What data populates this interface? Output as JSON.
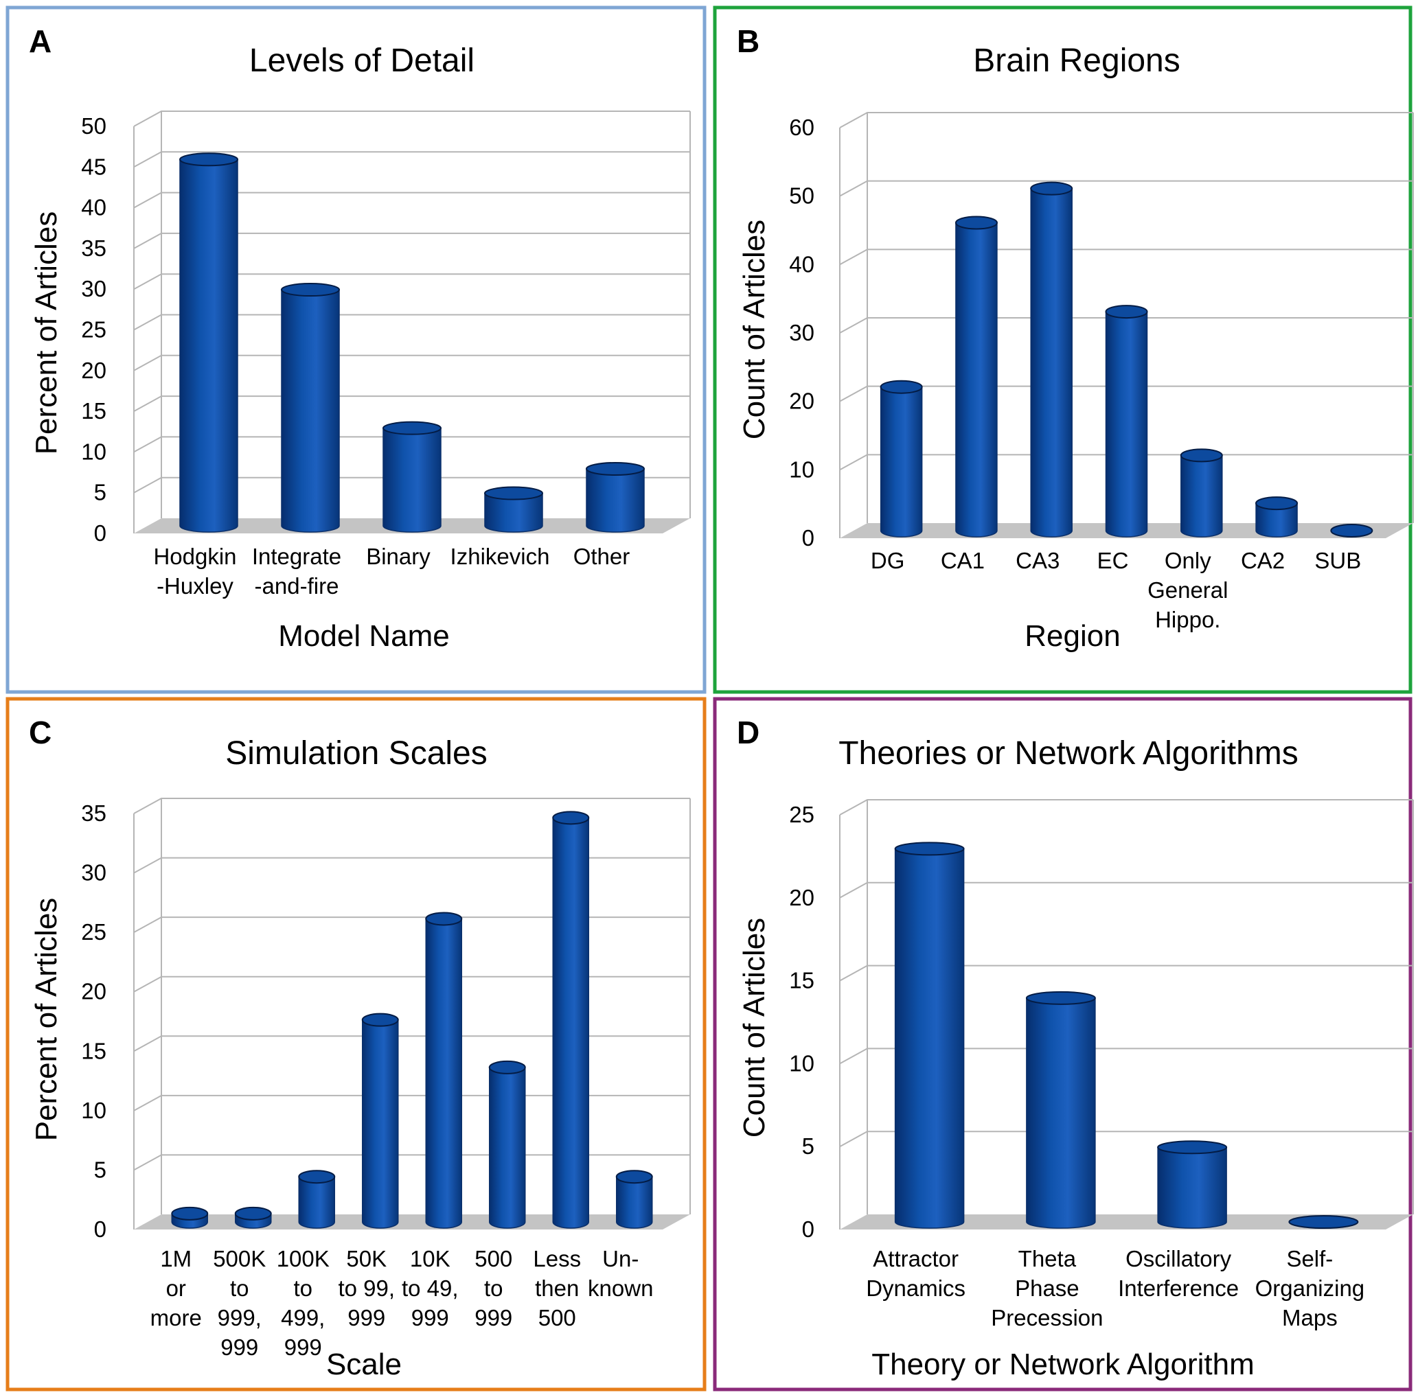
{
  "colors": {
    "bar": "#0d4fa3",
    "bar_dark": "#062e6e",
    "bar_light": "#1f63c2",
    "frame_A": "#7fa6d4",
    "frame_B": "#1ea33c",
    "frame_C": "#e67e1a",
    "frame_D": "#8a2a7a",
    "grid": "#b5b5b5",
    "floor": "#c4c4c4"
  },
  "chart_data": [
    {
      "panel": "A",
      "type": "bar",
      "title": "Levels of Detail",
      "xlabel": "Model Name",
      "ylabel": "Percent of Articles",
      "ylim": [
        0,
        50
      ],
      "yticks": [
        0,
        5,
        10,
        15,
        20,
        25,
        30,
        35,
        40,
        45,
        50
      ],
      "grid": true,
      "categories": [
        [
          "Hodgkin",
          "-Huxley"
        ],
        [
          "Integrate",
          "-and-fire"
        ],
        [
          "Binary"
        ],
        [
          "Izhikevich"
        ],
        [
          "Other"
        ]
      ],
      "values": [
        45,
        29,
        12,
        4,
        7
      ]
    },
    {
      "panel": "B",
      "type": "bar",
      "title": "Brain Regions",
      "xlabel": "Region",
      "ylabel": "Count of Articles",
      "ylim": [
        0,
        60
      ],
      "yticks": [
        0,
        10,
        20,
        30,
        40,
        50,
        60
      ],
      "grid": true,
      "categories": [
        [
          "DG"
        ],
        [
          "CA1"
        ],
        [
          "CA3"
        ],
        [
          "EC"
        ],
        [
          "Only",
          "General",
          "Hippo."
        ],
        [
          "CA2"
        ],
        [
          "SUB"
        ]
      ],
      "values": [
        21,
        45,
        50,
        32,
        11,
        4,
        0
      ]
    },
    {
      "panel": "C",
      "type": "bar",
      "title": "Simulation Scales",
      "xlabel": "Scale",
      "ylabel": "Percent of Articles",
      "ylim": [
        0,
        35
      ],
      "yticks": [
        0,
        5,
        10,
        15,
        20,
        25,
        30,
        35
      ],
      "grid": true,
      "categories": [
        [
          "1M",
          "or",
          "more"
        ],
        [
          "500K",
          "to",
          "999,",
          "999"
        ],
        [
          "100K",
          "to",
          "499,",
          "999"
        ],
        [
          "50K",
          "to 99,",
          "999"
        ],
        [
          "10K",
          "to 49,",
          "999"
        ],
        [
          "500",
          "to",
          "999"
        ],
        [
          "Less",
          "then",
          "500"
        ],
        [
          "Un-",
          "known"
        ]
      ],
      "values": [
        0.7,
        0.7,
        3.8,
        17,
        25.5,
        13,
        34,
        3.8
      ]
    },
    {
      "panel": "D",
      "type": "bar",
      "title": "Theories or Network Algorithms",
      "xlabel": "Theory or Network Algorithm",
      "ylabel": "Count of Articles",
      "ylim": [
        0,
        25
      ],
      "yticks": [
        0,
        5,
        10,
        15,
        20,
        25
      ],
      "grid": true,
      "categories": [
        [
          "Attractor",
          "Dynamics"
        ],
        [
          "Theta",
          "Phase",
          "Precession"
        ],
        [
          "Oscillatory",
          "Interference"
        ],
        [
          "Self-",
          "Organizing",
          "Maps"
        ]
      ],
      "values": [
        22.5,
        13.5,
        4.5,
        0
      ]
    }
  ]
}
